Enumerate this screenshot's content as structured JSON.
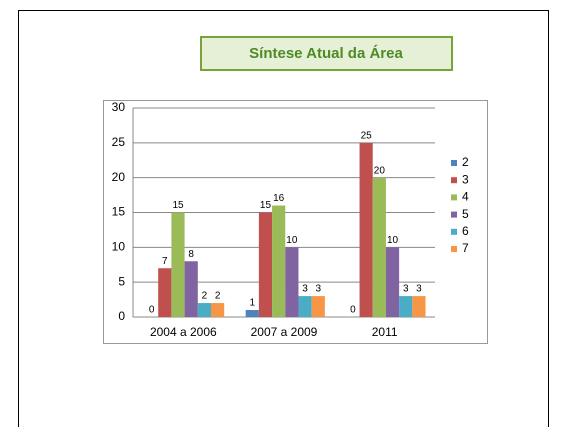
{
  "chart_data": {
    "type": "bar",
    "title": "Síntese Atual da Área",
    "categories": [
      "2004 a 2006",
      "2007 a 2009",
      "2011"
    ],
    "series": [
      {
        "name": "2",
        "color": "#4f81bd",
        "values": [
          0,
          1,
          0
        ]
      },
      {
        "name": "3",
        "color": "#c0504d",
        "values": [
          7,
          15,
          25
        ]
      },
      {
        "name": "4",
        "color": "#9bbb59",
        "values": [
          15,
          16,
          20
        ]
      },
      {
        "name": "5",
        "color": "#8064a2",
        "values": [
          8,
          10,
          10
        ]
      },
      {
        "name": "6",
        "color": "#4bacc6",
        "values": [
          2,
          3,
          3
        ]
      },
      {
        "name": "7",
        "color": "#f79646",
        "values": [
          2,
          3,
          3
        ]
      }
    ],
    "ylim": [
      0,
      30
    ],
    "yticks": [
      0,
      5,
      10,
      15,
      20,
      25,
      30
    ],
    "grid": true,
    "legend": "right"
  }
}
